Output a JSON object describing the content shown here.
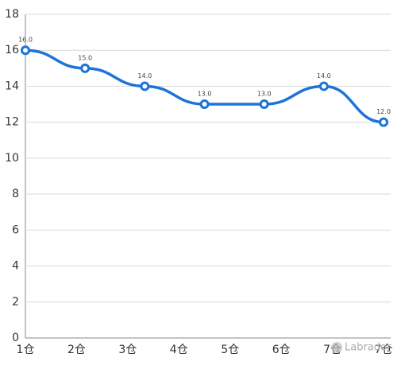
{
  "chart_data": {
    "type": "line",
    "x": [
      1,
      2,
      3,
      4,
      5,
      6,
      7
    ],
    "series": [
      {
        "color": "#1e73d8",
        "values": [
          16,
          15,
          14,
          13,
          13,
          14,
          12
        ],
        "value_labels": [
          "16.0",
          "15.0",
          "14.0",
          "13.0",
          "13.0",
          "14.0",
          "12.0"
        ]
      }
    ],
    "xlim": [
      1,
      7
    ],
    "xticks": [
      {
        "value": 1,
        "label": "1仓"
      },
      {
        "value": 1.857,
        "label": "2仓"
      },
      {
        "value": 2.714,
        "label": "3仓"
      },
      {
        "value": 3.571,
        "label": "4仓"
      },
      {
        "value": 4.429,
        "label": "5仓"
      },
      {
        "value": 5.286,
        "label": "6仓"
      },
      {
        "value": 6.143,
        "label": "7仓"
      },
      {
        "value": 7,
        "label": "7仓"
      }
    ],
    "ylim": [
      0,
      18
    ],
    "yticks": [
      0,
      2,
      4,
      6,
      8,
      10,
      12,
      14,
      16,
      18
    ],
    "grid": true,
    "smooth": true,
    "watermark": "Labrador"
  }
}
